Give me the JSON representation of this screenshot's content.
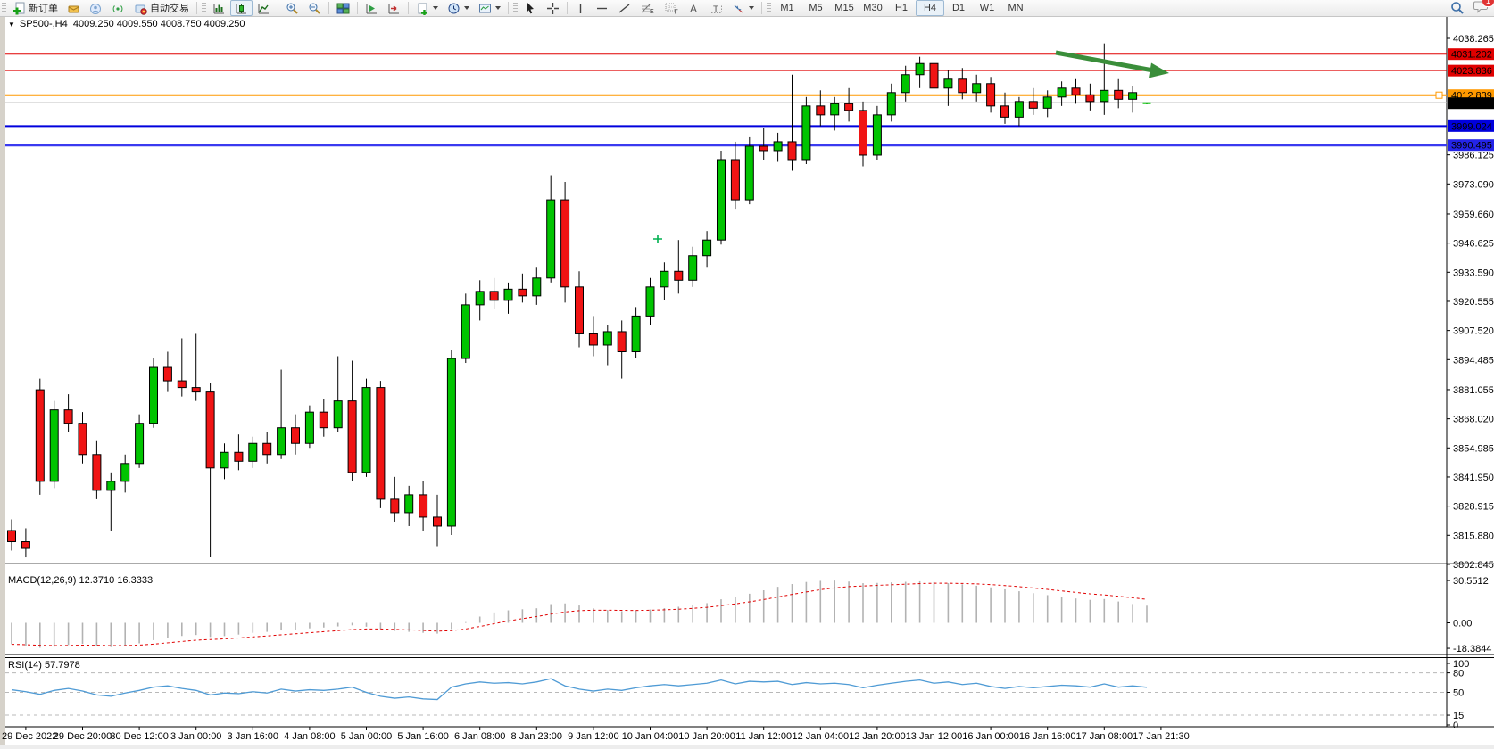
{
  "toolbar": {
    "new_order": "新订单",
    "auto_trading": "自动交易",
    "timeframes": [
      "M1",
      "M5",
      "M15",
      "M30",
      "H1",
      "H4",
      "D1",
      "W1",
      "MN"
    ],
    "active_timeframe": "H4",
    "chat_badge": "1",
    "icon_names": [
      "new-order-icon",
      "alert-icon",
      "community-icon",
      "signals-icon",
      "autotrading-icon",
      "bar-chart-icon",
      "candlestick-icon",
      "line-chart-icon",
      "zoom-in-icon",
      "zoom-out-icon",
      "tile-windows-icon",
      "chart-shift-icon",
      "auto-scroll-icon",
      "new-chart-icon",
      "period-icon",
      "template-icon",
      "cursor-icon",
      "crosshair-icon",
      "vertical-line-icon",
      "horizontal-line-icon",
      "trendline-icon",
      "fibonacci-icon",
      "grid-icon",
      "text-icon",
      "label-icon",
      "shapes-icon",
      "search-icon",
      "chat-icon"
    ]
  },
  "chart": {
    "menu_arrow": "▼",
    "title": "SP500-,H4",
    "ohlc": "4009.250 4009.550 4008.750 4009.250"
  },
  "chart_data": {
    "type": "candlestick",
    "title": "SP500-,H4  4009.250 4009.550 4008.750 4009.250",
    "ylim": [
      3803.2,
      4047.8
    ],
    "price_ticks": [
      "4038.265",
      "3986.125",
      "3973.090",
      "3959.660",
      "3946.625",
      "3933.590",
      "3920.555",
      "3907.520",
      "3894.485",
      "3881.055",
      "3868.020",
      "3854.985",
      "3841.950",
      "3828.915",
      "3815.880",
      "3802.845"
    ],
    "x_labels": [
      "29 Dec 2022",
      "29 Dec 20:00",
      "30 Dec 12:00",
      "3 Jan 00:00",
      "3 Jan 16:00",
      "4 Jan 08:00",
      "5 Jan 00:00",
      "5 Jan 16:00",
      "6 Jan 08:00",
      "8 Jan 23:00",
      "9 Jan 12:00",
      "10 Jan 04:00",
      "10 Jan 20:00",
      "11 Jan 12:00",
      "12 Jan 04:00",
      "12 Jan 20:00",
      "13 Jan 12:00",
      "16 Jan 00:00",
      "16 Jan 16:00",
      "17 Jan 08:00",
      "17 Jan 21:30"
    ],
    "colors": {
      "up": "#00c400",
      "down": "#f01414",
      "wick": "#000000",
      "background": "#ffffff",
      "axis": "#000000"
    },
    "candles": [
      [
        3818,
        3823,
        3809,
        3813
      ],
      [
        3813,
        3819,
        3806,
        3810
      ],
      [
        3881,
        3886,
        3834,
        3840
      ],
      [
        3840,
        3876,
        3837,
        3872
      ],
      [
        3872,
        3879,
        3862,
        3866
      ],
      [
        3866,
        3871,
        3848,
        3852
      ],
      [
        3852,
        3858,
        3832,
        3836
      ],
      [
        3836,
        3844,
        3818,
        3840
      ],
      [
        3840,
        3852,
        3835,
        3848
      ],
      [
        3848,
        3870,
        3846,
        3866
      ],
      [
        3866,
        3895,
        3864,
        3891
      ],
      [
        3891,
        3898,
        3880,
        3885
      ],
      [
        3885,
        3904,
        3878,
        3882
      ],
      [
        3882,
        3906,
        3876,
        3880
      ],
      [
        3880,
        3884,
        3806,
        3846
      ],
      [
        3846,
        3857,
        3841,
        3853
      ],
      [
        3853,
        3861,
        3845,
        3849
      ],
      [
        3849,
        3860,
        3846,
        3857
      ],
      [
        3857,
        3862,
        3848,
        3852
      ],
      [
        3852,
        3890,
        3850,
        3864
      ],
      [
        3864,
        3870,
        3852,
        3857
      ],
      [
        3857,
        3874,
        3855,
        3871
      ],
      [
        3871,
        3877,
        3860,
        3864
      ],
      [
        3864,
        3896,
        3862,
        3876
      ],
      [
        3876,
        3894,
        3840,
        3844
      ],
      [
        3844,
        3886,
        3842,
        3882
      ],
      [
        3882,
        3885,
        3828,
        3832
      ],
      [
        3832,
        3842,
        3822,
        3826
      ],
      [
        3826,
        3838,
        3820,
        3834
      ],
      [
        3834,
        3840,
        3818,
        3824
      ],
      [
        3824,
        3834,
        3811,
        3820
      ],
      [
        3820,
        3899,
        3816,
        3895
      ],
      [
        3895,
        3924,
        3893,
        3919
      ],
      [
        3919,
        3930,
        3912,
        3925
      ],
      [
        3925,
        3931,
        3917,
        3921
      ],
      [
        3921,
        3929,
        3915,
        3926
      ],
      [
        3926,
        3933,
        3920,
        3923
      ],
      [
        3923,
        3936,
        3919,
        3931
      ],
      [
        3931,
        3977,
        3929,
        3966
      ],
      [
        3966,
        3974,
        3920,
        3927
      ],
      [
        3927,
        3934,
        3900,
        3906
      ],
      [
        3906,
        3914,
        3896,
        3901
      ],
      [
        3901,
        3910,
        3892,
        3907
      ],
      [
        3907,
        3912,
        3886,
        3898
      ],
      [
        3898,
        3918,
        3895,
        3914
      ],
      [
        3914,
        3931,
        3910,
        3927
      ],
      [
        3927,
        3938,
        3921,
        3934
      ],
      [
        3934,
        3948,
        3924,
        3930
      ],
      [
        3930,
        3945,
        3927,
        3941
      ],
      [
        3941,
        3952,
        3936,
        3948
      ],
      [
        3948,
        3988,
        3946,
        3984
      ],
      [
        3984,
        3992,
        3962,
        3966
      ],
      [
        3966,
        3994,
        3964,
        3990
      ],
      [
        3990,
        3998,
        3984,
        3988
      ],
      [
        3988,
        3996,
        3983,
        3992
      ],
      [
        3992,
        4022,
        3979,
        3984
      ],
      [
        3984,
        4012,
        3982,
        4008
      ],
      [
        4008,
        4015,
        3999,
        4004
      ],
      [
        4004,
        4012,
        3997,
        4009
      ],
      [
        4009,
        4016,
        4001,
        4006
      ],
      [
        4006,
        4010,
        3981,
        3986
      ],
      [
        3986,
        4008,
        3984,
        4004
      ],
      [
        4004,
        4018,
        4001,
        4014
      ],
      [
        4014,
        4026,
        4010,
        4022
      ],
      [
        4022,
        4030,
        4016,
        4027
      ],
      [
        4027,
        4031,
        4012,
        4016
      ],
      [
        4016,
        4024,
        4008,
        4020
      ],
      [
        4020,
        4025,
        4011,
        4014
      ],
      [
        4014,
        4022,
        4010,
        4018
      ],
      [
        4018,
        4021,
        4005,
        4008
      ],
      [
        4008,
        4014,
        4000,
        4003
      ],
      [
        4003,
        4012,
        3999,
        4010
      ],
      [
        4010,
        4016,
        4004,
        4007
      ],
      [
        4007,
        4015,
        4003,
        4012
      ],
      [
        4012,
        4019,
        4008,
        4016
      ],
      [
        4016,
        4020,
        4009,
        4013
      ],
      [
        4013,
        4018,
        4006,
        4010
      ],
      [
        4010,
        4036,
        4004,
        4015
      ],
      [
        4015,
        4020,
        4007,
        4011
      ],
      [
        4011,
        4017,
        4005,
        4014
      ],
      [
        4009.25,
        4009.55,
        4008.75,
        4009.25
      ]
    ],
    "hlines": [
      {
        "price": 4031.202,
        "color": "#e00000",
        "width": 1,
        "label": "4031.202",
        "label_bg": "#e00000",
        "label_fg": "#ffffff"
      },
      {
        "price": 4023.836,
        "color": "#e00000",
        "width": 1,
        "label": "4023.836",
        "label_bg": "#e00000",
        "label_fg": "#ffffff"
      },
      {
        "price": 4012.839,
        "color": "#ff9900",
        "width": 2,
        "label": "4012.839",
        "label_bg": "#ff9900",
        "label_fg": "#ffffff",
        "handle": true
      },
      {
        "price": 4009.55,
        "color": "#c0c0c0",
        "width": 1,
        "label": null
      },
      {
        "price": 3999.024,
        "color": "#0000dd",
        "width": 2,
        "label": "3999.024",
        "label_bg": "#0000dd",
        "label_fg": "#ffffff"
      },
      {
        "price": 3990.495,
        "color": "#3a3af0",
        "width": 3,
        "label": "3990.495",
        "label_bg": "#2424e8",
        "label_fg": "#ffffff"
      }
    ],
    "current_price": {
      "price": 4009.25,
      "label": "4009.250",
      "bg": "#000000",
      "fg": "#ffffff"
    },
    "indicators": {
      "macd": {
        "name": "MACD(12,26,9)",
        "value_main": "12.3710",
        "value_signal": "16.3333",
        "axis_labels": [
          "30.5512",
          "0.00",
          "-18.3844"
        ],
        "hist_color": "#b2b2b2",
        "signal_color": "#e00000",
        "histogram": [
          -15.5,
          -16.8,
          -18.0,
          -17.2,
          -16.0,
          -15.2,
          -16.5,
          -17.5,
          -16.2,
          -14.8,
          -12.5,
          -10.8,
          -9.5,
          -8.8,
          -10.2,
          -9.6,
          -8.5,
          -7.2,
          -6.5,
          -5.5,
          -4.8,
          -4.0,
          -3.4,
          -2.6,
          -1.8,
          -2.8,
          -4.5,
          -5.8,
          -6.5,
          -7.2,
          -7.8,
          -4.5,
          0.5,
          4.5,
          7.5,
          9.0,
          9.8,
          10.5,
          13.5,
          14.0,
          12.5,
          10.5,
          9.2,
          8.4,
          8.8,
          9.6,
          10.6,
          11.6,
          12.8,
          14.2,
          17.0,
          19.0,
          21.0,
          23.5,
          26.0,
          28.0,
          29.5,
          30.3,
          30.5,
          29.8,
          28.6,
          28.8,
          29.2,
          29.6,
          30.0,
          29.4,
          28.6,
          27.8,
          26.8,
          25.6,
          24.2,
          22.8,
          21.4,
          20.0,
          18.8,
          17.6,
          16.6,
          17.2,
          15.4,
          13.6,
          12.371
        ]
      },
      "rsi": {
        "name": "RSI(14)",
        "value": "57.7978",
        "axis_labels": [
          "100",
          "80",
          "50",
          "15",
          "0"
        ],
        "levels": [
          80,
          50,
          15
        ],
        "line_color": "#4f9bd5",
        "values": [
          54,
          51,
          47,
          53,
          56,
          52,
          46,
          44,
          49,
          53,
          58,
          60,
          56,
          53,
          46,
          49,
          48,
          51,
          49,
          55,
          52,
          54,
          53,
          55,
          58,
          50,
          44,
          41,
          43,
          40,
          39,
          58,
          63,
          66,
          64,
          65,
          63,
          66,
          71,
          60,
          55,
          52,
          55,
          53,
          57,
          60,
          62,
          60,
          62,
          64,
          69,
          63,
          67,
          66,
          67,
          62,
          65,
          63,
          64,
          62,
          57,
          61,
          64,
          67,
          69,
          64,
          66,
          62,
          64,
          59,
          56,
          59,
          57,
          59,
          61,
          60,
          58,
          63,
          58,
          60,
          57.8
        ]
      }
    },
    "annotations": {
      "trend_arrow": {
        "from": [
          1183,
          59
        ],
        "to": [
          1310,
          82
        ],
        "color": "#3a8e3a"
      },
      "cross_marker": {
        "x": 737,
        "y": 268,
        "color": "#00b050"
      }
    }
  }
}
